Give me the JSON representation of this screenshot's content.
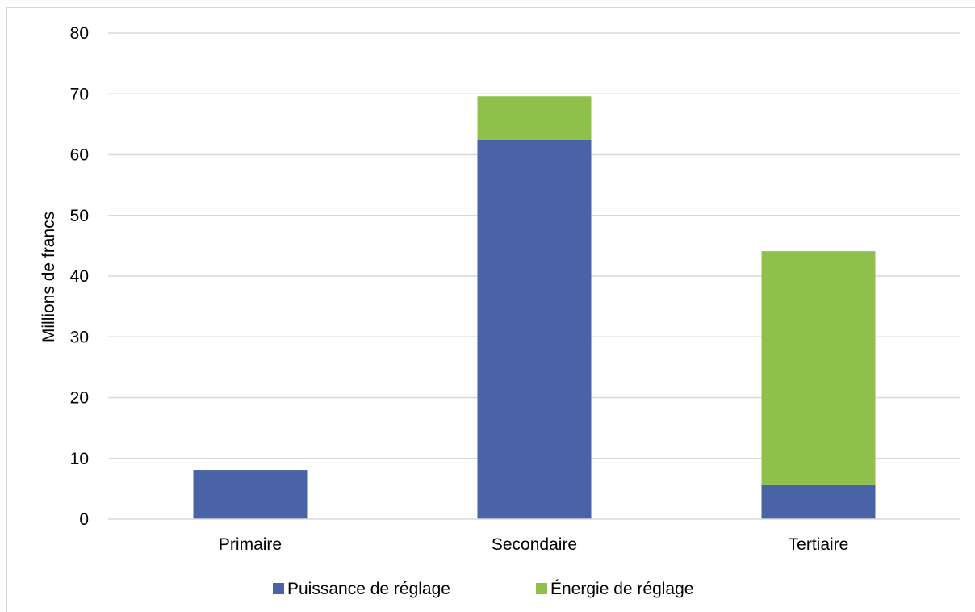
{
  "chart_data": {
    "type": "bar",
    "stacked": true,
    "categories": [
      "Primaire",
      "Secondaire",
      "Tertiaire"
    ],
    "series": [
      {
        "name": "Puissance de réglage",
        "values": [
          8.1,
          62.4,
          5.6
        ],
        "color": "#4a62a6"
      },
      {
        "name": "Énergie de réglage",
        "values": [
          0,
          7.2,
          38.5
        ],
        "color": "#8fc04b"
      }
    ],
    "title": "",
    "xlabel": "",
    "ylabel": "Millions de francs",
    "ylim": [
      0,
      80
    ],
    "yticks": [
      "0",
      "10",
      "20",
      "30",
      "40",
      "50",
      "60",
      "70",
      "80"
    ],
    "grid": true,
    "legend_position": "bottom",
    "gridline_color": "#d9d9d9"
  }
}
